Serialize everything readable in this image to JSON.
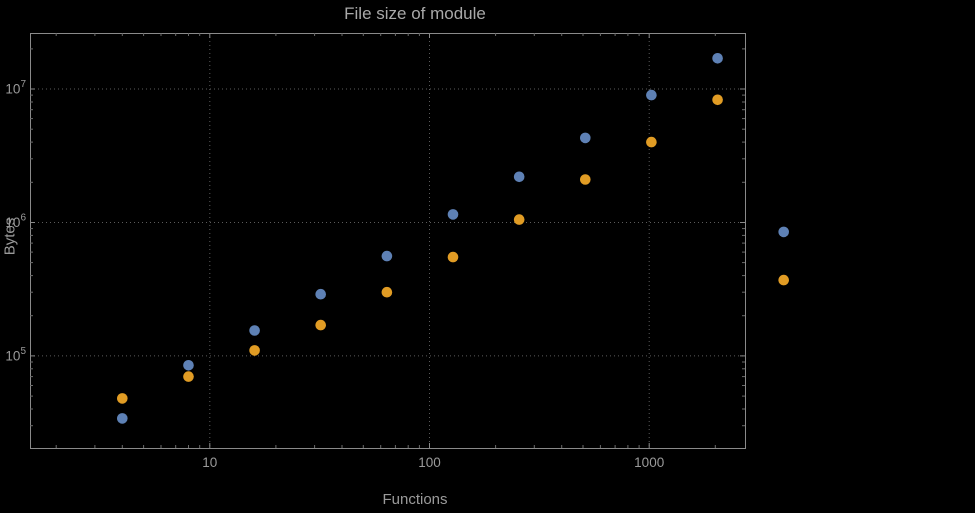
{
  "chart_data": {
    "type": "scatter",
    "title": "File size of module",
    "xlabel": "Functions",
    "ylabel": "Bytes",
    "x_scale": "log",
    "y_scale": "log",
    "grid": "dotted",
    "legend": "none",
    "xlim": [
      1.52,
      2730
    ],
    "ylim": [
      20400,
      26300000
    ],
    "x_ticks": [
      {
        "value": 10,
        "label": "10"
      },
      {
        "value": 100,
        "label": "100"
      },
      {
        "value": 1000,
        "label": "1000"
      }
    ],
    "y_ticks": [
      {
        "value": 100000,
        "base": "10",
        "exp": "5"
      },
      {
        "value": 1000000,
        "base": "10",
        "exp": "6"
      },
      {
        "value": 10000000,
        "base": "10",
        "exp": "7"
      }
    ],
    "x": [
      4,
      8,
      16,
      32,
      64,
      128,
      256,
      512,
      1024,
      2048,
      4096
    ],
    "series": [
      {
        "name": "series-1-blue",
        "color": "#5E81B5",
        "values": [
          34000,
          85000,
          155000,
          290000,
          560000,
          1150000,
          2200000,
          4300000,
          9000000,
          17000000,
          850000
        ]
      },
      {
        "name": "series-2-orange",
        "color": "#E19C24",
        "values": [
          48000,
          70000,
          110000,
          170000,
          300000,
          550000,
          1050000,
          2100000,
          4000000,
          8300000,
          370000
        ]
      }
    ],
    "colors": {
      "background": "#000000",
      "frame": "#8a8a8a",
      "tick_minor": "#6b6b6b",
      "grid": "#5c5c5c",
      "text": "#9a9a9a",
      "title": "#a9a9a9"
    }
  }
}
